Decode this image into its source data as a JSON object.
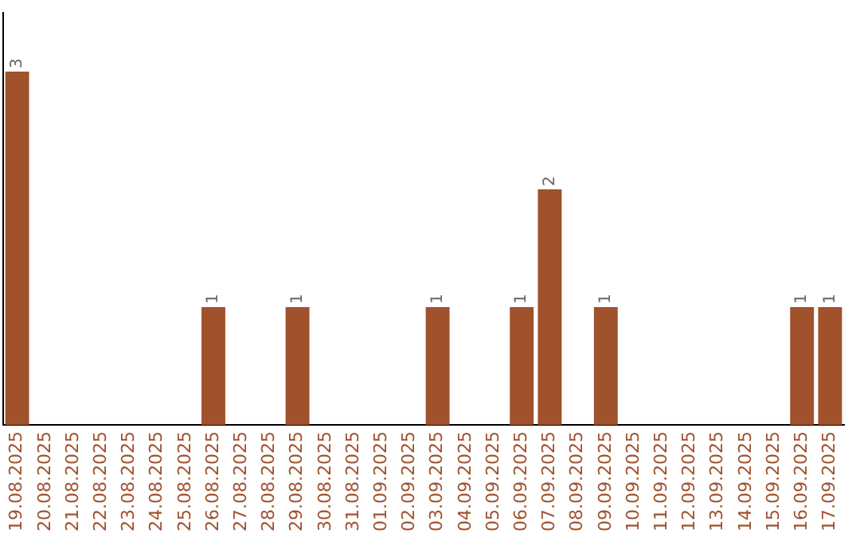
{
  "chart_data": {
    "type": "bar",
    "categories": [
      "19.08.2025",
      "20.08.2025",
      "21.08.2025",
      "22.08.2025",
      "23.08.2025",
      "24.08.2025",
      "25.08.2025",
      "26.08.2025",
      "27.08.2025",
      "28.08.2025",
      "29.08.2025",
      "30.08.2025",
      "31.08.2025",
      "01.09.2025",
      "02.09.2025",
      "03.09.2025",
      "04.09.2025",
      "05.09.2025",
      "06.09.2025",
      "07.09.2025",
      "08.09.2025",
      "09.09.2025",
      "10.09.2025",
      "11.09.2025",
      "12.09.2025",
      "13.09.2025",
      "14.09.2025",
      "15.09.2025",
      "16.09.2025",
      "17.09.2025"
    ],
    "values": [
      3,
      0,
      0,
      0,
      0,
      0,
      0,
      1,
      0,
      0,
      1,
      0,
      0,
      0,
      0,
      1,
      0,
      0,
      1,
      2,
      0,
      1,
      0,
      0,
      0,
      0,
      0,
      0,
      1,
      1
    ],
    "value_labels": [
      "3",
      null,
      null,
      null,
      null,
      null,
      null,
      "1",
      null,
      null,
      "1",
      null,
      null,
      null,
      null,
      "1",
      null,
      null,
      "1",
      "2",
      null,
      "1",
      null,
      null,
      null,
      null,
      null,
      null,
      "1",
      "1"
    ],
    "color": "#a0522d",
    "grid": false,
    "legend": false,
    "tick_labels": "x"
  }
}
